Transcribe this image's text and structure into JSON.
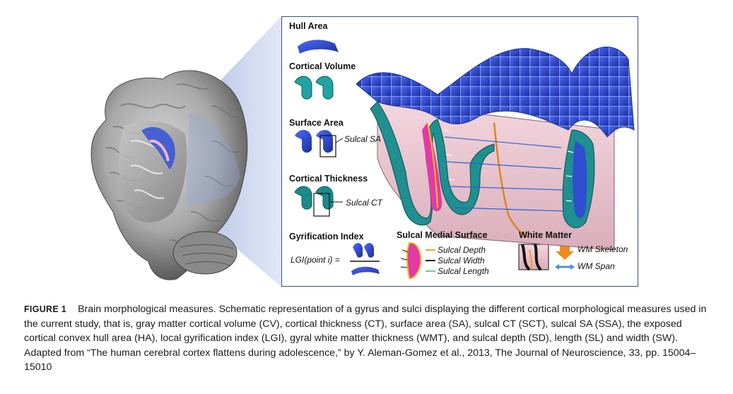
{
  "figure": {
    "labels": {
      "hull_area": "Hull Area",
      "cortical_volume": "Cortical Volume",
      "surface_area": "Surface Area",
      "sulcal_sa": "Sulcal SA",
      "cortical_thickness": "Cortical Thickness",
      "sulcal_ct": "Sulcal CT",
      "gyrification_index": "Gyrification Index",
      "lgi_formula": "LGI(point i) =",
      "sulcal_medial_surface": "Sulcal Medial Surface",
      "sulcal_depth": "Sulcal Depth",
      "sulcal_width": "Sulcal Width",
      "sulcal_length": "Sulcal Length",
      "white_matter": "White Matter",
      "wm_skeleton": "WM Skeleton",
      "wm_span": "WM Span"
    },
    "colors": {
      "surface_blue": "#2f44b8",
      "cortex_teal": "#1f8f8f",
      "tissue_pink": "#e8c6cf",
      "medial_magenta": "#e23aa6",
      "depth_orange": "#f2a21c",
      "width_black": "#111111",
      "length_green": "#6fd08a",
      "span_blue": "#4a8fe8",
      "frame_blue": "#3c4f86"
    }
  },
  "caption": {
    "figure_id": "FIGURE 1",
    "text": "Brain morphological measures. Schematic representation of a gyrus and sulci displaying the different cortical morphological measures used in the current study, that is, gray matter cortical volume (CV), cortical thickness (CT), surface area (SA), sulcal CT (SCT), sulcal SA (SSA), the exposed cortical convex hull area (HA), local gyrification index (LGI), gyral white matter thickness (WMT), and sulcal depth (SD), length (SL) and width (SW). Adapted from “The human cerebral cortex flattens during adolescence,” by Y. Aleman-Gomez et al., 2013, The Journal of Neuroscience, 33, pp. 15004–15010"
  }
}
